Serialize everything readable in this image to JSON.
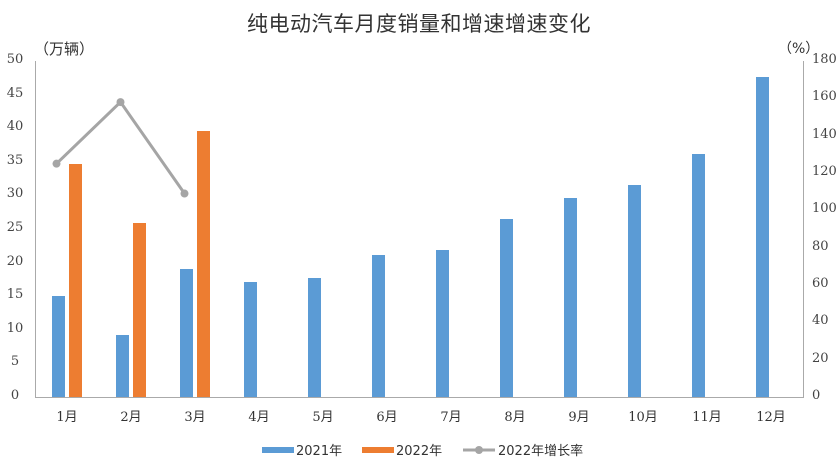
{
  "title": "纯电动汽车月度销量和增速增速变化",
  "left_unit": "（万辆）",
  "right_unit": "（%）",
  "colors": {
    "s2021": "#5B9BD5",
    "s2022": "#ED7D31",
    "growth": "#A5A5A5",
    "axis": "#AAAAAA"
  },
  "legend": {
    "s2021": "2021年",
    "s2022": "2022年",
    "growth": "2022年增长率"
  },
  "chart_data": {
    "type": "bar",
    "title": "纯电动汽车月度销量和增速增速变化",
    "xlabel": "",
    "ylabel": "万辆",
    "ylabel_right": "%",
    "ylim": [
      0,
      50
    ],
    "ylim_right": [
      0,
      180
    ],
    "yticks": [
      0,
      5,
      10,
      15,
      20,
      25,
      30,
      35,
      40,
      45,
      50
    ],
    "yticks_right": [
      0,
      20,
      40,
      60,
      80,
      100,
      120,
      140,
      160,
      180
    ],
    "grid": false,
    "legend_position": "bottom",
    "categories": [
      "1月",
      "2月",
      "3月",
      "4月",
      "5月",
      "6月",
      "7月",
      "8月",
      "9月",
      "10月",
      "11月",
      "12月"
    ],
    "series": [
      {
        "name": "2021年",
        "type": "bar",
        "axis": "left",
        "values": [
          15.0,
          9.2,
          19.0,
          17.1,
          17.7,
          21.1,
          21.9,
          26.5,
          29.6,
          31.5,
          36.2,
          47.6
        ]
      },
      {
        "name": "2022年",
        "type": "bar",
        "axis": "left",
        "values": [
          34.7,
          25.9,
          39.6,
          null,
          null,
          null,
          null,
          null,
          null,
          null,
          null,
          null
        ]
      },
      {
        "name": "2022年增长率",
        "type": "line",
        "axis": "right",
        "values": [
          125,
          158,
          109,
          null,
          null,
          null,
          null,
          null,
          null,
          null,
          null,
          null
        ]
      }
    ]
  }
}
